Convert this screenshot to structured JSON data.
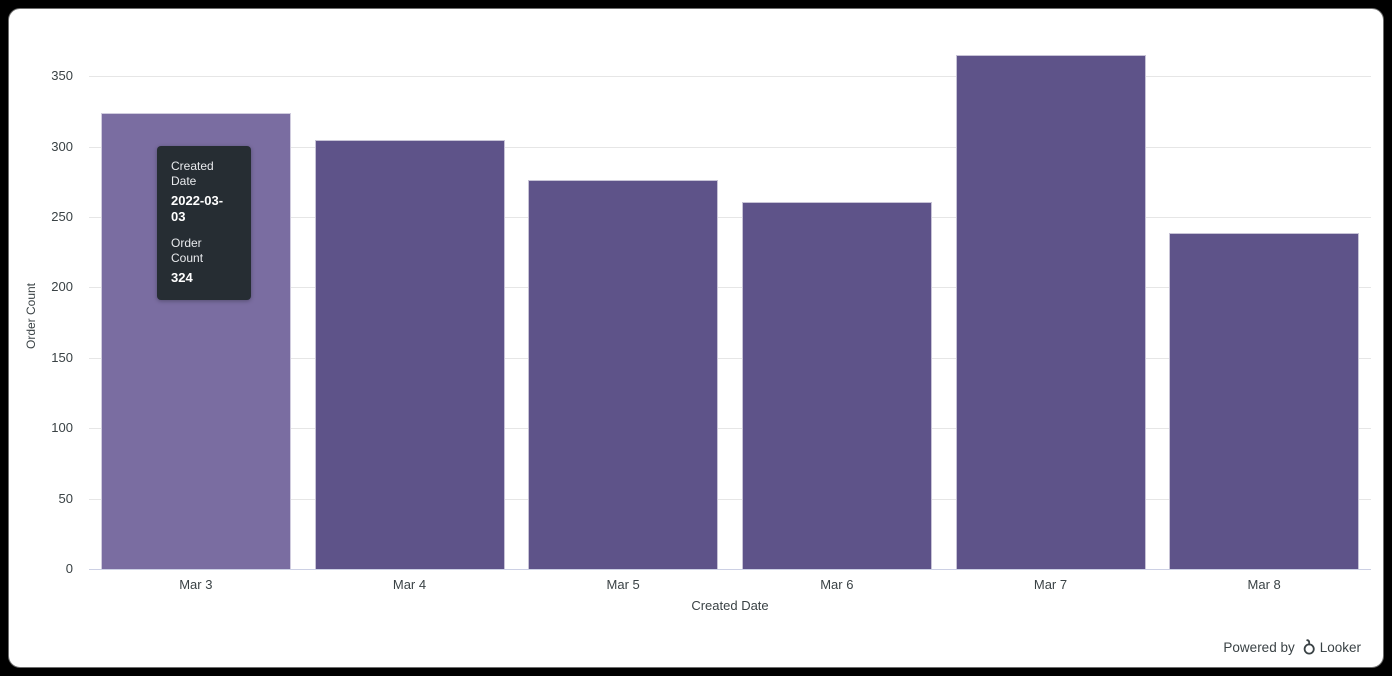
{
  "chart_data": {
    "type": "bar",
    "categories": [
      "Mar 3",
      "Mar 4",
      "Mar 5",
      "Mar 6",
      "Mar 7",
      "Mar 8"
    ],
    "values": [
      324,
      305,
      276,
      261,
      365,
      239
    ],
    "series_name": "Order Count",
    "title": "",
    "xlabel": "Created Date",
    "ylabel": "Order Count",
    "ylim": [
      0,
      375
    ],
    "yticks": [
      0,
      50,
      100,
      150,
      200,
      250,
      300,
      350
    ],
    "grid": true,
    "legend": "none",
    "bar_color": "#5e5389",
    "hover_bar_color": "#7a6da1",
    "hovered_index": 0
  },
  "tooltip": {
    "dim_label": "Created Date",
    "dim_value": "2022-03-03",
    "measure_label": "Order Count",
    "measure_value": "324"
  },
  "axes": {
    "x_title": "Created Date",
    "y_title": "Order Count"
  },
  "footer": {
    "powered_by": "Powered by",
    "brand": "Looker"
  },
  "colors": {
    "bar": "#5e5389",
    "bar_hover": "#7a6da1",
    "tooltip_bg": "#262d33",
    "grid": "#e6e6e6",
    "axis_line": "#ccd0e4",
    "text": "#3a4245"
  }
}
